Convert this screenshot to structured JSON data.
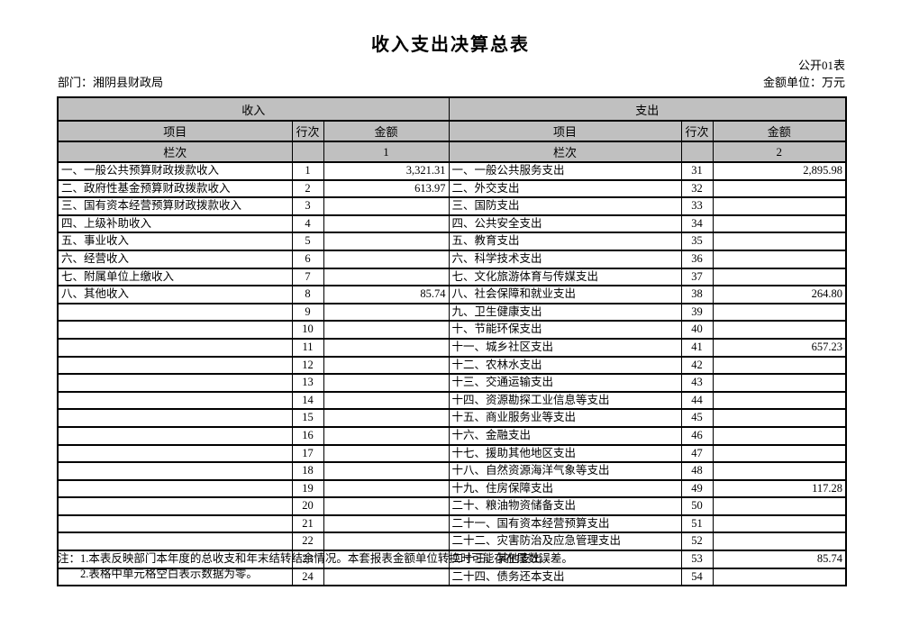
{
  "page": {
    "title": "收入支出决算总表",
    "form_label": "公开01表",
    "department": "部门：湘阴县财政局",
    "unit": "金额单位：万元"
  },
  "colors": {
    "header_bg": "#c0c0c0",
    "border": "#000000",
    "text": "#000000",
    "page_bg": "#ffffff"
  },
  "table": {
    "income_header": "收入",
    "expense_header": "支出",
    "col_item": "项目",
    "col_rownum": "行次",
    "col_amount": "金额",
    "col_index_label": "栏次",
    "income_col_index": "1",
    "expense_col_index": "2",
    "rows": [
      [
        "一、一般公共预算财政拨款收入",
        "1",
        "3,321.31",
        "一、一般公共服务支出",
        "31",
        "2,895.98"
      ],
      [
        "二、政府性基金预算财政拨款收入",
        "2",
        "613.97",
        "二、外交支出",
        "32",
        ""
      ],
      [
        "三、国有资本经营预算财政拨款收入",
        "3",
        "",
        "三、国防支出",
        "33",
        ""
      ],
      [
        "四、上级补助收入",
        "4",
        "",
        "四、公共安全支出",
        "34",
        ""
      ],
      [
        "五、事业收入",
        "5",
        "",
        "五、教育支出",
        "35",
        ""
      ],
      [
        "六、经营收入",
        "6",
        "",
        "六、科学技术支出",
        "36",
        ""
      ],
      [
        "七、附属单位上缴收入",
        "7",
        "",
        "七、文化旅游体育与传媒支出",
        "37",
        ""
      ],
      [
        "八、其他收入",
        "8",
        "85.74",
        "八、社会保障和就业支出",
        "38",
        "264.80"
      ],
      [
        "",
        "9",
        "",
        "九、卫生健康支出",
        "39",
        ""
      ],
      [
        "",
        "10",
        "",
        "十、节能环保支出",
        "40",
        ""
      ],
      [
        "",
        "11",
        "",
        "十一、城乡社区支出",
        "41",
        "657.23"
      ],
      [
        "",
        "12",
        "",
        "十二、农林水支出",
        "42",
        ""
      ],
      [
        "",
        "13",
        "",
        "十三、交通运输支出",
        "43",
        ""
      ],
      [
        "",
        "14",
        "",
        "十四、资源勘探工业信息等支出",
        "44",
        ""
      ],
      [
        "",
        "15",
        "",
        "十五、商业服务业等支出",
        "45",
        ""
      ],
      [
        "",
        "16",
        "",
        "十六、金融支出",
        "46",
        ""
      ],
      [
        "",
        "17",
        "",
        "十七、援助其他地区支出",
        "47",
        ""
      ],
      [
        "",
        "18",
        "",
        "十八、自然资源海洋气象等支出",
        "48",
        ""
      ],
      [
        "",
        "19",
        "",
        "十九、住房保障支出",
        "49",
        "117.28"
      ],
      [
        "",
        "20",
        "",
        "二十、粮油物资储备支出",
        "50",
        ""
      ],
      [
        "",
        "21",
        "",
        "二十一、国有资本经营预算支出",
        "51",
        ""
      ],
      [
        "",
        "22",
        "",
        "二十二、灾害防治及应急管理支出",
        "52",
        ""
      ],
      [
        "",
        "23",
        "",
        "二十三、其他支出",
        "53",
        "85.74"
      ],
      [
        "",
        "24",
        "",
        "二十四、债务还本支出",
        "54",
        ""
      ]
    ]
  },
  "notes": {
    "line1": "注：1.本表反映部门本年度的总收支和年末结转结余情况。本套报表金额单位转换时可能存在尾数误差。",
    "line2": "2.表格中单元格空白表示数据为零。"
  }
}
